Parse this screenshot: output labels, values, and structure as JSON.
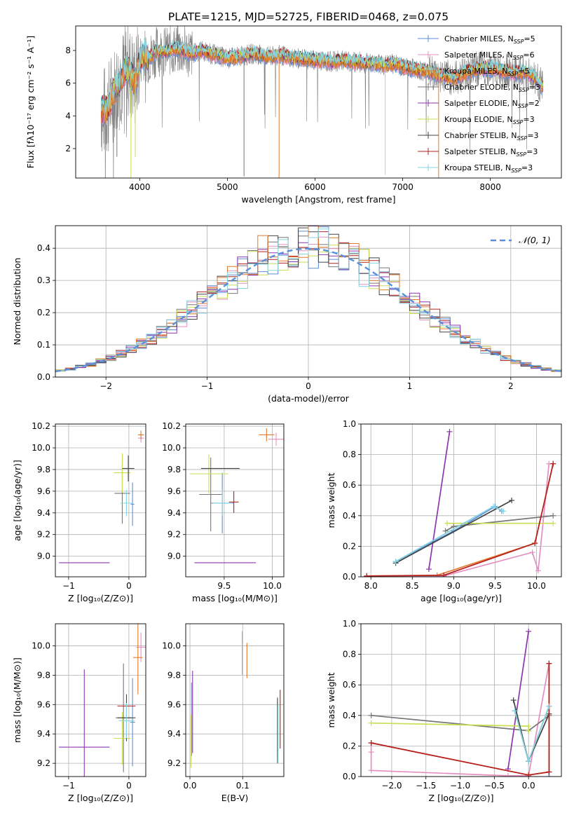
{
  "figure_title": "PLATE=1215, MJD=52725, FIBERID=0468, z=0.075",
  "series_colors": [
    "#5b8fd9",
    "#e58fc0",
    "#e07a2c",
    "#777777",
    "#8e35b0",
    "#c8df55",
    "#444444",
    "#b52020",
    "#86d3e0"
  ],
  "chart_data": [
    {
      "type": "line",
      "panel": "spectrum",
      "xlabel": "wavelength [Angstrom, rest frame]",
      "ylabel": "Flux [fλ10⁻¹⁷ erg cm⁻² s⁻¹ A⁻¹]",
      "xlim": [
        3270,
        8810
      ],
      "ylim": [
        0.2,
        9.5
      ],
      "xticks": [
        "4000",
        "5000",
        "6000",
        "7000",
        "8000"
      ],
      "yticks": [
        "2",
        "4",
        "6",
        "8"
      ],
      "legend_position": "right",
      "legend": [
        {
          "label": "Chabrier MILES, N",
          "sub": "SSP",
          "tail": "=5"
        },
        {
          "label": "Salpeter MILES, N",
          "sub": "SSP",
          "tail": "=6"
        },
        {
          "label": "Kroupa MILES, N",
          "sub": "SSP",
          "tail": "=5"
        },
        {
          "label": "Chabrier ELODIE, N",
          "sub": "SSP",
          "tail": "=3"
        },
        {
          "label": "Salpeter ELODIE, N",
          "sub": "SSP",
          "tail": "=2"
        },
        {
          "label": "Kroupa ELODIE, N",
          "sub": "SSP",
          "tail": "=3"
        },
        {
          "label": "Chabrier STELIB, N",
          "sub": "SSP",
          "tail": "=3"
        },
        {
          "label": "Salpeter STELIB, N",
          "sub": "SSP",
          "tail": "=3"
        },
        {
          "label": "Kroupa STELIB, N",
          "sub": "SSP",
          "tail": "=3"
        }
      ],
      "data_curve": {
        "x": [
          3560,
          3600,
          3650,
          3700,
          3750,
          3800,
          3850,
          3900,
          3950,
          4000,
          4050,
          4100,
          4200,
          4300,
          4400,
          4500,
          4600,
          4700,
          4800,
          4900,
          5000,
          5100,
          5200,
          5300,
          5400,
          5500,
          5600,
          5700,
          5800,
          5900,
          6000,
          6100,
          6200,
          6300,
          6400,
          6500,
          6600,
          6700,
          6800,
          6900,
          7000,
          7100,
          7200,
          7300,
          7400,
          7500,
          7600,
          7700,
          7800,
          7900,
          8000,
          8100,
          8200,
          8300,
          8400,
          8500,
          8600
        ],
        "y": [
          4.4,
          4.2,
          4.6,
          5.4,
          5.9,
          6.4,
          6.9,
          6.6,
          6.0,
          7.4,
          7.8,
          7.5,
          8.0,
          7.9,
          8.1,
          8.0,
          7.8,
          8.0,
          7.8,
          7.7,
          7.5,
          7.6,
          7.7,
          7.8,
          7.7,
          7.6,
          7.7,
          7.6,
          7.5,
          7.5,
          7.4,
          7.4,
          7.3,
          7.4,
          7.3,
          7.3,
          7.2,
          7.2,
          7.1,
          7.2,
          7.0,
          6.9,
          6.8,
          6.7,
          6.5,
          6.4,
          6.3,
          6.6,
          6.8,
          6.9,
          6.9,
          6.8,
          6.7,
          6.6,
          6.7,
          6.4,
          5.7
        ]
      }
    },
    {
      "type": "line",
      "panel": "residual-histogram",
      "xlabel": "(data-model)/error",
      "ylabel": "Normed distribution",
      "xlim": [
        -2.5,
        2.5
      ],
      "ylim": [
        0,
        0.47
      ],
      "xticks": [
        "−2",
        "−1",
        "0",
        "1",
        "2"
      ],
      "yticks": [
        "0.0",
        "0.1",
        "0.2",
        "0.3",
        "0.4"
      ],
      "grid": true,
      "legend_position": "top-right",
      "legend": "𝒩(0, 1)",
      "gaussian": {
        "mean": 0,
        "sigma": 1
      }
    },
    {
      "type": "scatter",
      "panel": "age-vs-Z",
      "xlabel": "Z [log₁₀(Z/Z⊙)]",
      "ylabel": "age  [log₁₀(age/yr)]",
      "xlim": [
        -1.22,
        0.28
      ],
      "ylim": [
        8.81,
        10.22
      ],
      "xticks": [
        "−1",
        "0"
      ],
      "yticks": [
        "9.0",
        "9.2",
        "9.4",
        "9.6",
        "9.8",
        "10.0",
        "10.2"
      ],
      "grid": true,
      "points": [
        {
          "x": 0.06,
          "y": 9.48,
          "xerr": 0.03,
          "yerr": 0.2,
          "c": 0
        },
        {
          "x": 0.2,
          "y": 10.09,
          "xerr": 0.05,
          "yerr": 0.04,
          "c": 1
        },
        {
          "x": 0.2,
          "y": 10.12,
          "xerr": 0.05,
          "yerr": 0.04,
          "c": 2
        },
        {
          "x": -0.11,
          "y": 9.58,
          "xerr": 0.13,
          "yerr": 0.28,
          "c": 3
        },
        {
          "x": -0.74,
          "y": 8.94,
          "xerr": 0.42,
          "yerr": 0.0,
          "c": 4
        },
        {
          "x": -0.11,
          "y": 9.77,
          "xerr": 0.14,
          "yerr": 0.18,
          "c": 5
        },
        {
          "x": -0.01,
          "y": 9.81,
          "xerr": 0.1,
          "yerr": 0.12,
          "c": 6
        },
        {
          "x": 0.04,
          "y": 10.12,
          "xerr": 0.0,
          "yerr": 0.0,
          "c": 7
        },
        {
          "x": -0.04,
          "y": 9.49,
          "xerr": 0.1,
          "yerr": 0.12,
          "c": 8
        }
      ]
    },
    {
      "type": "scatter",
      "panel": "age-vs-mass",
      "xlabel": "mass [log₁₀(M/M⊙)]",
      "ylabel": "",
      "xlim": [
        9.1,
        10.12
      ],
      "ylim": [
        8.81,
        10.22
      ],
      "xticks": [
        "9.5",
        "10.0"
      ],
      "yticks": [
        "9.0",
        "9.2",
        "9.4",
        "9.6",
        "9.8",
        "10.0",
        "10.2"
      ],
      "grid": true,
      "points": [
        {
          "x": 9.48,
          "y": 9.49,
          "xerr": 0.12,
          "yerr": 0.28,
          "c": 0
        },
        {
          "x": 10.04,
          "y": 10.08,
          "xerr": 0.08,
          "yerr": 0.06,
          "c": 1
        },
        {
          "x": 9.94,
          "y": 10.12,
          "xerr": 0.08,
          "yerr": 0.06,
          "c": 2
        },
        {
          "x": 9.36,
          "y": 9.57,
          "xerr": 0.12,
          "yerr": 0.34,
          "c": 3
        },
        {
          "x": 9.51,
          "y": 8.94,
          "xerr": 0.32,
          "yerr": 0.0,
          "c": 4
        },
        {
          "x": 9.34,
          "y": 9.76,
          "xerr": 0.2,
          "yerr": 0.18,
          "c": 5
        },
        {
          "x": 9.46,
          "y": 9.81,
          "xerr": 0.2,
          "yerr": 0.0,
          "c": 6
        },
        {
          "x": 9.6,
          "y": 9.5,
          "xerr": 0.05,
          "yerr": 0.1,
          "c": 7
        },
        {
          "x": 9.48,
          "y": 9.49,
          "xerr": 0.1,
          "yerr": 0.12,
          "c": 8
        }
      ]
    },
    {
      "type": "line",
      "panel": "mass-weight-vs-age",
      "xlabel": "age  [log₁₀(age/yr)]",
      "ylabel": "mass weight",
      "xlim": [
        7.88,
        10.3
      ],
      "ylim": [
        0,
        1.0
      ],
      "xticks": [
        "8.0",
        "8.5",
        "9.0",
        "9.5",
        "10.0"
      ],
      "yticks": [
        "0.0",
        "0.2",
        "0.4",
        "0.6",
        "0.8",
        "1.0"
      ],
      "grid": true,
      "series": [
        {
          "c": 0,
          "x": [
            8.3,
            9.0,
            9.5,
            9.58
          ],
          "y": [
            0.1,
            0.3,
            0.46,
            0.43
          ]
        },
        {
          "c": 1,
          "x": [
            7.95,
            8.88,
            9.95,
            10.02,
            10.15,
            10.2
          ],
          "y": [
            0.005,
            0.005,
            0.16,
            0.04,
            0.74,
            0.74
          ]
        },
        {
          "c": 2,
          "x": [
            7.95,
            8.8,
            9.98,
            10.2
          ],
          "y": [
            0.005,
            0.01,
            0.22,
            0.74
          ]
        },
        {
          "c": 3,
          "x": [
            8.9,
            9.0,
            10.2
          ],
          "y": [
            0.3,
            0.33,
            0.4
          ]
        },
        {
          "c": 4,
          "x": [
            8.7,
            8.95
          ],
          "y": [
            0.05,
            0.95
          ]
        },
        {
          "c": 5,
          "x": [
            8.92,
            10.2
          ],
          "y": [
            0.35,
            0.35
          ]
        },
        {
          "c": 6,
          "x": [
            8.3,
            9.7
          ],
          "y": [
            0.09,
            0.5
          ]
        },
        {
          "c": 7,
          "x": [
            7.95,
            8.88,
            9.98,
            10.2
          ],
          "y": [
            0.005,
            0.01,
            0.22,
            0.74
          ]
        },
        {
          "c": 8,
          "x": [
            8.3,
            9.48,
            9.6
          ],
          "y": [
            0.1,
            0.46,
            0.43
          ]
        }
      ]
    },
    {
      "type": "scatter",
      "panel": "mass-vs-Z",
      "xlabel": "Z [log₁₀(Z/Z⊙)]",
      "ylabel": "mass [log₁₀(M/M⊙)]",
      "xlim": [
        -1.22,
        0.28
      ],
      "ylim": [
        9.11,
        10.15
      ],
      "xticks": [
        "−1",
        "0"
      ],
      "yticks": [
        "9.2",
        "9.4",
        "9.6",
        "9.8",
        "10.0"
      ],
      "grid": true,
      "points": [
        {
          "x": 0.06,
          "y": 9.48,
          "xerr": 0.04,
          "yerr": 0.3,
          "c": 0
        },
        {
          "x": 0.2,
          "y": 9.99,
          "xerr": 0.08,
          "yerr": 0.1,
          "c": 1
        },
        {
          "x": 0.15,
          "y": 9.92,
          "xerr": 0.08,
          "yerr": 0.25,
          "c": 2
        },
        {
          "x": -0.09,
          "y": 9.51,
          "xerr": 0.13,
          "yerr": 0.37,
          "c": 3
        },
        {
          "x": -0.74,
          "y": 9.31,
          "xerr": 0.42,
          "yerr": 0.53,
          "c": 4
        },
        {
          "x": -0.11,
          "y": 9.37,
          "xerr": 0.14,
          "yerr": 0.18,
          "c": 5
        },
        {
          "x": -0.04,
          "y": 9.51,
          "xerr": 0.15,
          "yerr": 0.16,
          "c": 6
        },
        {
          "x": -0.04,
          "y": 9.59,
          "xerr": 0.15,
          "yerr": 0.0,
          "c": 7
        },
        {
          "x": -0.04,
          "y": 9.49,
          "xerr": 0.13,
          "yerr": 0.12,
          "c": 8
        }
      ]
    },
    {
      "type": "scatter",
      "panel": "mass-vs-EBV",
      "xlabel": "E(B-V)",
      "ylabel": "",
      "xlim": [
        -0.008,
        0.178
      ],
      "ylim": [
        9.11,
        10.15
      ],
      "xticks": [
        "0.0",
        "0.1"
      ],
      "yticks": [
        "9.2",
        "9.4",
        "9.6",
        "9.8",
        "10.0"
      ],
      "grid": true,
      "points": [
        {
          "x": 0.003,
          "y": 9.5,
          "xerr": 0,
          "yerr": 0.25,
          "c": 0
        },
        {
          "x": 0.099,
          "y": 9.95,
          "xerr": 0,
          "yerr": 0.15,
          "c": 1
        },
        {
          "x": 0.108,
          "y": 9.9,
          "xerr": 0,
          "yerr": 0.12,
          "c": 2
        },
        {
          "x": 0.166,
          "y": 9.45,
          "xerr": 0,
          "yerr": 0.2,
          "c": 3
        },
        {
          "x": 0.005,
          "y": 9.55,
          "xerr": 0,
          "yerr": 0.28,
          "c": 4
        },
        {
          "x": 0.002,
          "y": 9.35,
          "xerr": 0,
          "yerr": 0.18,
          "c": 5
        },
        {
          "x": 0.166,
          "y": 9.42,
          "xerr": 0,
          "yerr": 0.22,
          "c": 6
        },
        {
          "x": 0.171,
          "y": 9.5,
          "xerr": 0,
          "yerr": 0.2,
          "c": 7
        },
        {
          "x": 0.167,
          "y": 9.4,
          "xerr": 0,
          "yerr": 0.2,
          "c": 8
        }
      ]
    },
    {
      "type": "line",
      "panel": "mass-weight-vs-Z",
      "xlabel": "Z [log₁₀(Z/Z⊙)]",
      "ylabel": "mass weight",
      "xlim": [
        -2.45,
        0.48
      ],
      "ylim": [
        0,
        1.0
      ],
      "xticks": [
        "−2.0",
        "−1.5",
        "−1.0",
        "−0.5",
        "0.0"
      ],
      "yticks": [
        "0.0",
        "0.2",
        "0.4",
        "0.6",
        "0.8",
        "1.0"
      ],
      "grid": true,
      "series": [
        {
          "c": 0,
          "x": [
            -0.2,
            0.0,
            0.3,
            0.3
          ],
          "y": [
            0.43,
            0.1,
            0.46,
            0.0
          ]
        },
        {
          "c": 1,
          "x": [
            -2.3,
            -2.3,
            -2.3,
            -0.3,
            0.0,
            0.3,
            0.3
          ],
          "y": [
            0.16,
            0.22,
            0.04,
            0.005,
            0.005,
            0.74,
            0.03
          ]
        },
        {
          "c": 2,
          "x": [
            -2.3,
            0.0,
            0.3,
            0.3
          ],
          "y": [
            0.22,
            0.01,
            0.03,
            0.74
          ]
        },
        {
          "c": 3,
          "x": [
            -2.3,
            0.0,
            0.3
          ],
          "y": [
            0.4,
            0.3,
            0.4
          ]
        },
        {
          "c": 4,
          "x": [
            -0.3,
            0.0
          ],
          "y": [
            0.05,
            0.95
          ]
        },
        {
          "c": 5,
          "x": [
            -2.3,
            0.0,
            0.0
          ],
          "y": [
            0.35,
            0.33,
            0.3
          ]
        },
        {
          "c": 6,
          "x": [
            -0.22,
            0.0,
            0.3
          ],
          "y": [
            0.5,
            0.1,
            0.41
          ]
        },
        {
          "c": 7,
          "x": [
            -2.3,
            0.0,
            0.3,
            0.3
          ],
          "y": [
            0.22,
            0.01,
            0.03,
            0.74
          ]
        },
        {
          "c": 8,
          "x": [
            -0.2,
            0.0,
            0.3
          ],
          "y": [
            0.43,
            0.1,
            0.46
          ]
        }
      ]
    }
  ]
}
